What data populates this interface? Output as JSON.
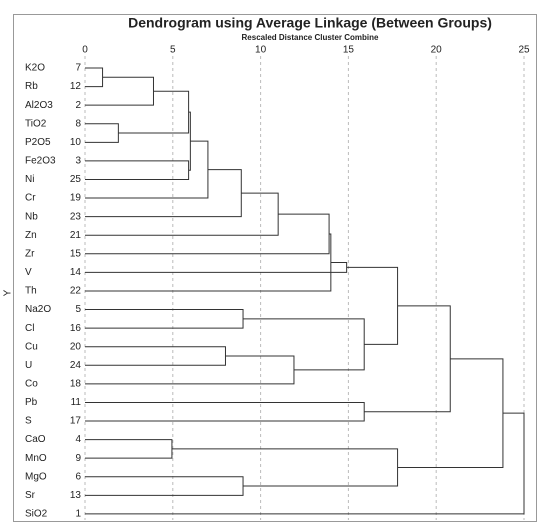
{
  "chart_data": {
    "type": "dendrogram",
    "title": "Dendrogram using Average Linkage (Between Groups)",
    "subtitle": "Rescaled Distance Cluster Combine",
    "y_label": "Y",
    "xlim": [
      0,
      25
    ],
    "xticks": [
      0,
      5,
      10,
      15,
      20,
      25
    ],
    "grid": true,
    "leaves": [
      {
        "label": "K2O",
        "id": 7
      },
      {
        "label": "Rb",
        "id": 12
      },
      {
        "label": "Al2O3",
        "id": 2
      },
      {
        "label": "TiO2",
        "id": 8
      },
      {
        "label": "P2O5",
        "id": 10
      },
      {
        "label": "Fe2O3",
        "id": 3
      },
      {
        "label": "Ni",
        "id": 25
      },
      {
        "label": "Cr",
        "id": 19
      },
      {
        "label": "Nb",
        "id": 23
      },
      {
        "label": "Zn",
        "id": 21
      },
      {
        "label": "Zr",
        "id": 15
      },
      {
        "label": "V",
        "id": 14
      },
      {
        "label": "Th",
        "id": 22
      },
      {
        "label": "Na2O",
        "id": 5
      },
      {
        "label": "Cl",
        "id": 16
      },
      {
        "label": "Cu",
        "id": 20
      },
      {
        "label": "U",
        "id": 24
      },
      {
        "label": "Co",
        "id": 18
      },
      {
        "label": "Pb",
        "id": 11
      },
      {
        "label": "S",
        "id": 17
      },
      {
        "label": "CaO",
        "id": 4
      },
      {
        "label": "MnO",
        "id": 9
      },
      {
        "label": "MgO",
        "id": 6
      },
      {
        "label": "Sr",
        "id": 13
      },
      {
        "label": "SiO2",
        "id": 1
      }
    ],
    "merges": [
      {
        "children": [
          0,
          1
        ],
        "distance": 1.0
      },
      {
        "children": [
          25,
          2
        ],
        "distance": 3.9
      },
      {
        "children": [
          3,
          4
        ],
        "distance": 1.9
      },
      {
        "children": [
          26,
          27
        ],
        "distance": 5.9
      },
      {
        "children": [
          5,
          6
        ],
        "distance": 5.9
      },
      {
        "children": [
          28,
          29
        ],
        "distance": 6.0
      },
      {
        "children": [
          30,
          7
        ],
        "distance": 7.0
      },
      {
        "children": [
          31,
          8
        ],
        "distance": 8.9
      },
      {
        "children": [
          32,
          9
        ],
        "distance": 11.0
      },
      {
        "children": [
          33,
          10
        ],
        "distance": 13.9
      },
      {
        "children": [
          34,
          12
        ],
        "distance": 14.0
      },
      {
        "children": [
          35,
          11
        ],
        "distance": 14.9
      },
      {
        "children": [
          13,
          14
        ],
        "distance": 9.0
      },
      {
        "children": [
          15,
          16
        ],
        "distance": 8.0
      },
      {
        "children": [
          38,
          17
        ],
        "distance": 11.9
      },
      {
        "children": [
          37,
          39
        ],
        "distance": 15.9
      },
      {
        "children": [
          36,
          40
        ],
        "distance": 17.8
      },
      {
        "children": [
          18,
          19
        ],
        "distance": 15.9
      },
      {
        "children": [
          41,
          42
        ],
        "distance": 20.8
      },
      {
        "children": [
          20,
          21
        ],
        "distance": 4.95
      },
      {
        "children": [
          22,
          23
        ],
        "distance": 9.0
      },
      {
        "children": [
          44,
          45
        ],
        "distance": 17.8
      },
      {
        "children": [
          43,
          46
        ],
        "distance": 23.8
      },
      {
        "children": [
          47,
          24
        ],
        "distance": 25.0
      }
    ]
  }
}
